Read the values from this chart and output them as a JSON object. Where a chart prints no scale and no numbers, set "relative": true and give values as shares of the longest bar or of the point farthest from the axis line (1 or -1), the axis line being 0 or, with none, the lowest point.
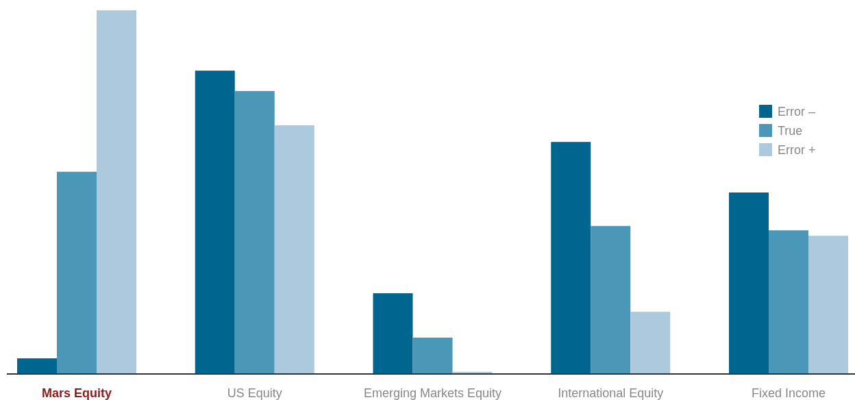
{
  "chart_data": {
    "type": "bar",
    "relative": true,
    "categories": [
      "Mars Equity",
      "US Equity",
      "Emerging Markets Equity",
      "International Equity",
      "Fixed Income"
    ],
    "series": [
      {
        "name": "Error –",
        "color": "#00658f",
        "values": [
          0.043,
          0.834,
          0.222,
          0.638,
          0.499
        ]
      },
      {
        "name": "True",
        "color": "#4a97b8",
        "values": [
          0.556,
          0.778,
          0.1,
          0.407,
          0.395
        ]
      },
      {
        "name": "Error +",
        "color": "#adc9de",
        "values": [
          1,
          0.684,
          0.006,
          0.171,
          0.38
        ]
      }
    ],
    "legend": "top right"
  }
}
